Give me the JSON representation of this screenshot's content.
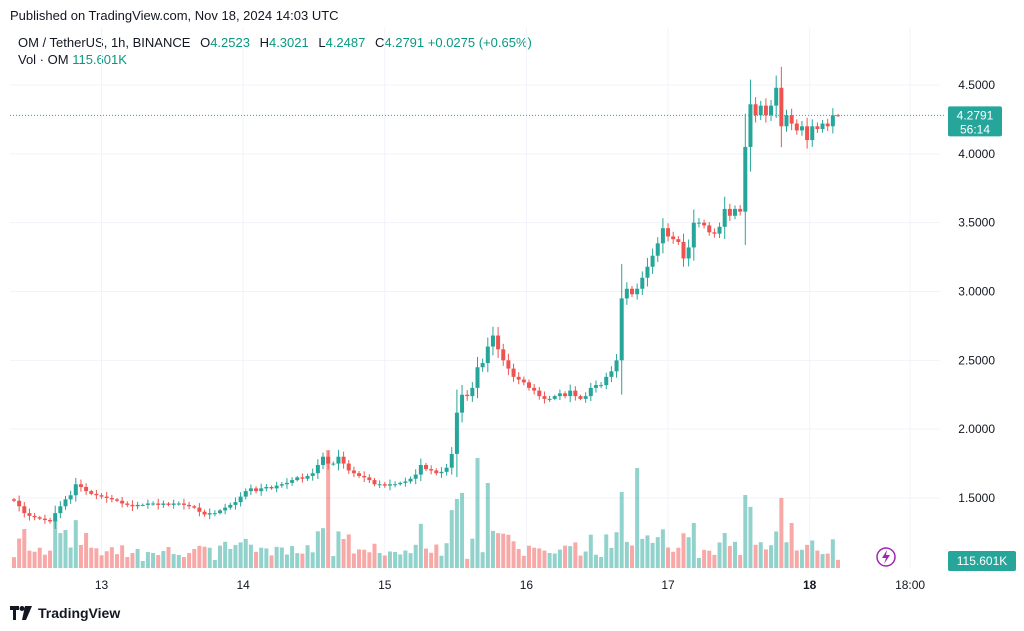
{
  "header": {
    "published": "Published on TradingView.com, Nov 18, 2024 14:03 UTC"
  },
  "legend": {
    "symbol": "OM / TetherUS, 1h, BINANCE",
    "o_label": "O",
    "o_value": "4.2523",
    "h_label": "H",
    "h_value": "4.3021",
    "l_label": "L",
    "l_value": "4.2487",
    "c_label": "C",
    "c_value": "4.2791",
    "change": "+0.0275 (+0.65%)",
    "vol_label": "Vol · OM",
    "vol_value": "115.601K"
  },
  "price_tag": {
    "price": "4.2791",
    "countdown": "56:14"
  },
  "volume_tag": "115.601K",
  "brand": {
    "name": "TradingView"
  },
  "colors": {
    "up": "#26a69a",
    "down": "#ef5350",
    "grid": "#f0f3fa",
    "text": "#131722",
    "legend_value": "#089981"
  },
  "chart_data": {
    "type": "candlestick",
    "title": "OM / TetherUS, 1h, BINANCE",
    "xlabel": "",
    "ylabel": "",
    "ylim": [
      1.0,
      4.6
    ],
    "y_ticks": [
      "1.5000",
      "2.0000",
      "2.5000",
      "3.0000",
      "3.5000",
      "4.0000",
      "4.5000"
    ],
    "x_ticks": [
      "13",
      "14",
      "15",
      "16",
      "17",
      "18",
      "18:00"
    ],
    "last_price": 4.2791,
    "series": [
      {
        "name": "close",
        "values": [
          1.48,
          1.44,
          1.39,
          1.37,
          1.36,
          1.35,
          1.34,
          1.33,
          1.39,
          1.44,
          1.49,
          1.52,
          1.6,
          1.58,
          1.55,
          1.53,
          1.52,
          1.51,
          1.5,
          1.49,
          1.48,
          1.46,
          1.45,
          1.44,
          1.45,
          1.45,
          1.46,
          1.46,
          1.45,
          1.46,
          1.45,
          1.46,
          1.46,
          1.45,
          1.44,
          1.43,
          1.4,
          1.38,
          1.39,
          1.39,
          1.41,
          1.43,
          1.45,
          1.47,
          1.51,
          1.55,
          1.57,
          1.55,
          1.57,
          1.58,
          1.57,
          1.59,
          1.6,
          1.61,
          1.63,
          1.65,
          1.64,
          1.66,
          1.68,
          1.74,
          1.8,
          1.75,
          1.75,
          1.8,
          1.75,
          1.7,
          1.68,
          1.66,
          1.65,
          1.63,
          1.6,
          1.6,
          1.59,
          1.6,
          1.6,
          1.61,
          1.62,
          1.64,
          1.67,
          1.74,
          1.71,
          1.7,
          1.68,
          1.69,
          1.72,
          1.82,
          2.12,
          2.25,
          2.24,
          2.3,
          2.45,
          2.48,
          2.6,
          2.68,
          2.58,
          2.5,
          2.44,
          2.38,
          2.36,
          2.34,
          2.3,
          2.28,
          2.24,
          2.22,
          2.22,
          2.24,
          2.26,
          2.24,
          2.28,
          2.24,
          2.22,
          2.24,
          2.3,
          2.32,
          2.32,
          2.38,
          2.42,
          2.5,
          2.95,
          3.02,
          2.98,
          3.02,
          3.1,
          3.18,
          3.26,
          3.35,
          3.46,
          3.4,
          3.38,
          3.36,
          3.24,
          3.32,
          3.5,
          3.5,
          3.48,
          3.43,
          3.42,
          3.47,
          3.6,
          3.55,
          3.6,
          3.58,
          4.05,
          4.36,
          4.28,
          4.35,
          4.28,
          4.35,
          4.48,
          4.2,
          4.28,
          4.22,
          4.17,
          4.2,
          4.1,
          4.2,
          4.18,
          4.22,
          4.2,
          4.28,
          4.279
        ]
      }
    ],
    "volume": {
      "max_label": "115.601K"
    }
  }
}
